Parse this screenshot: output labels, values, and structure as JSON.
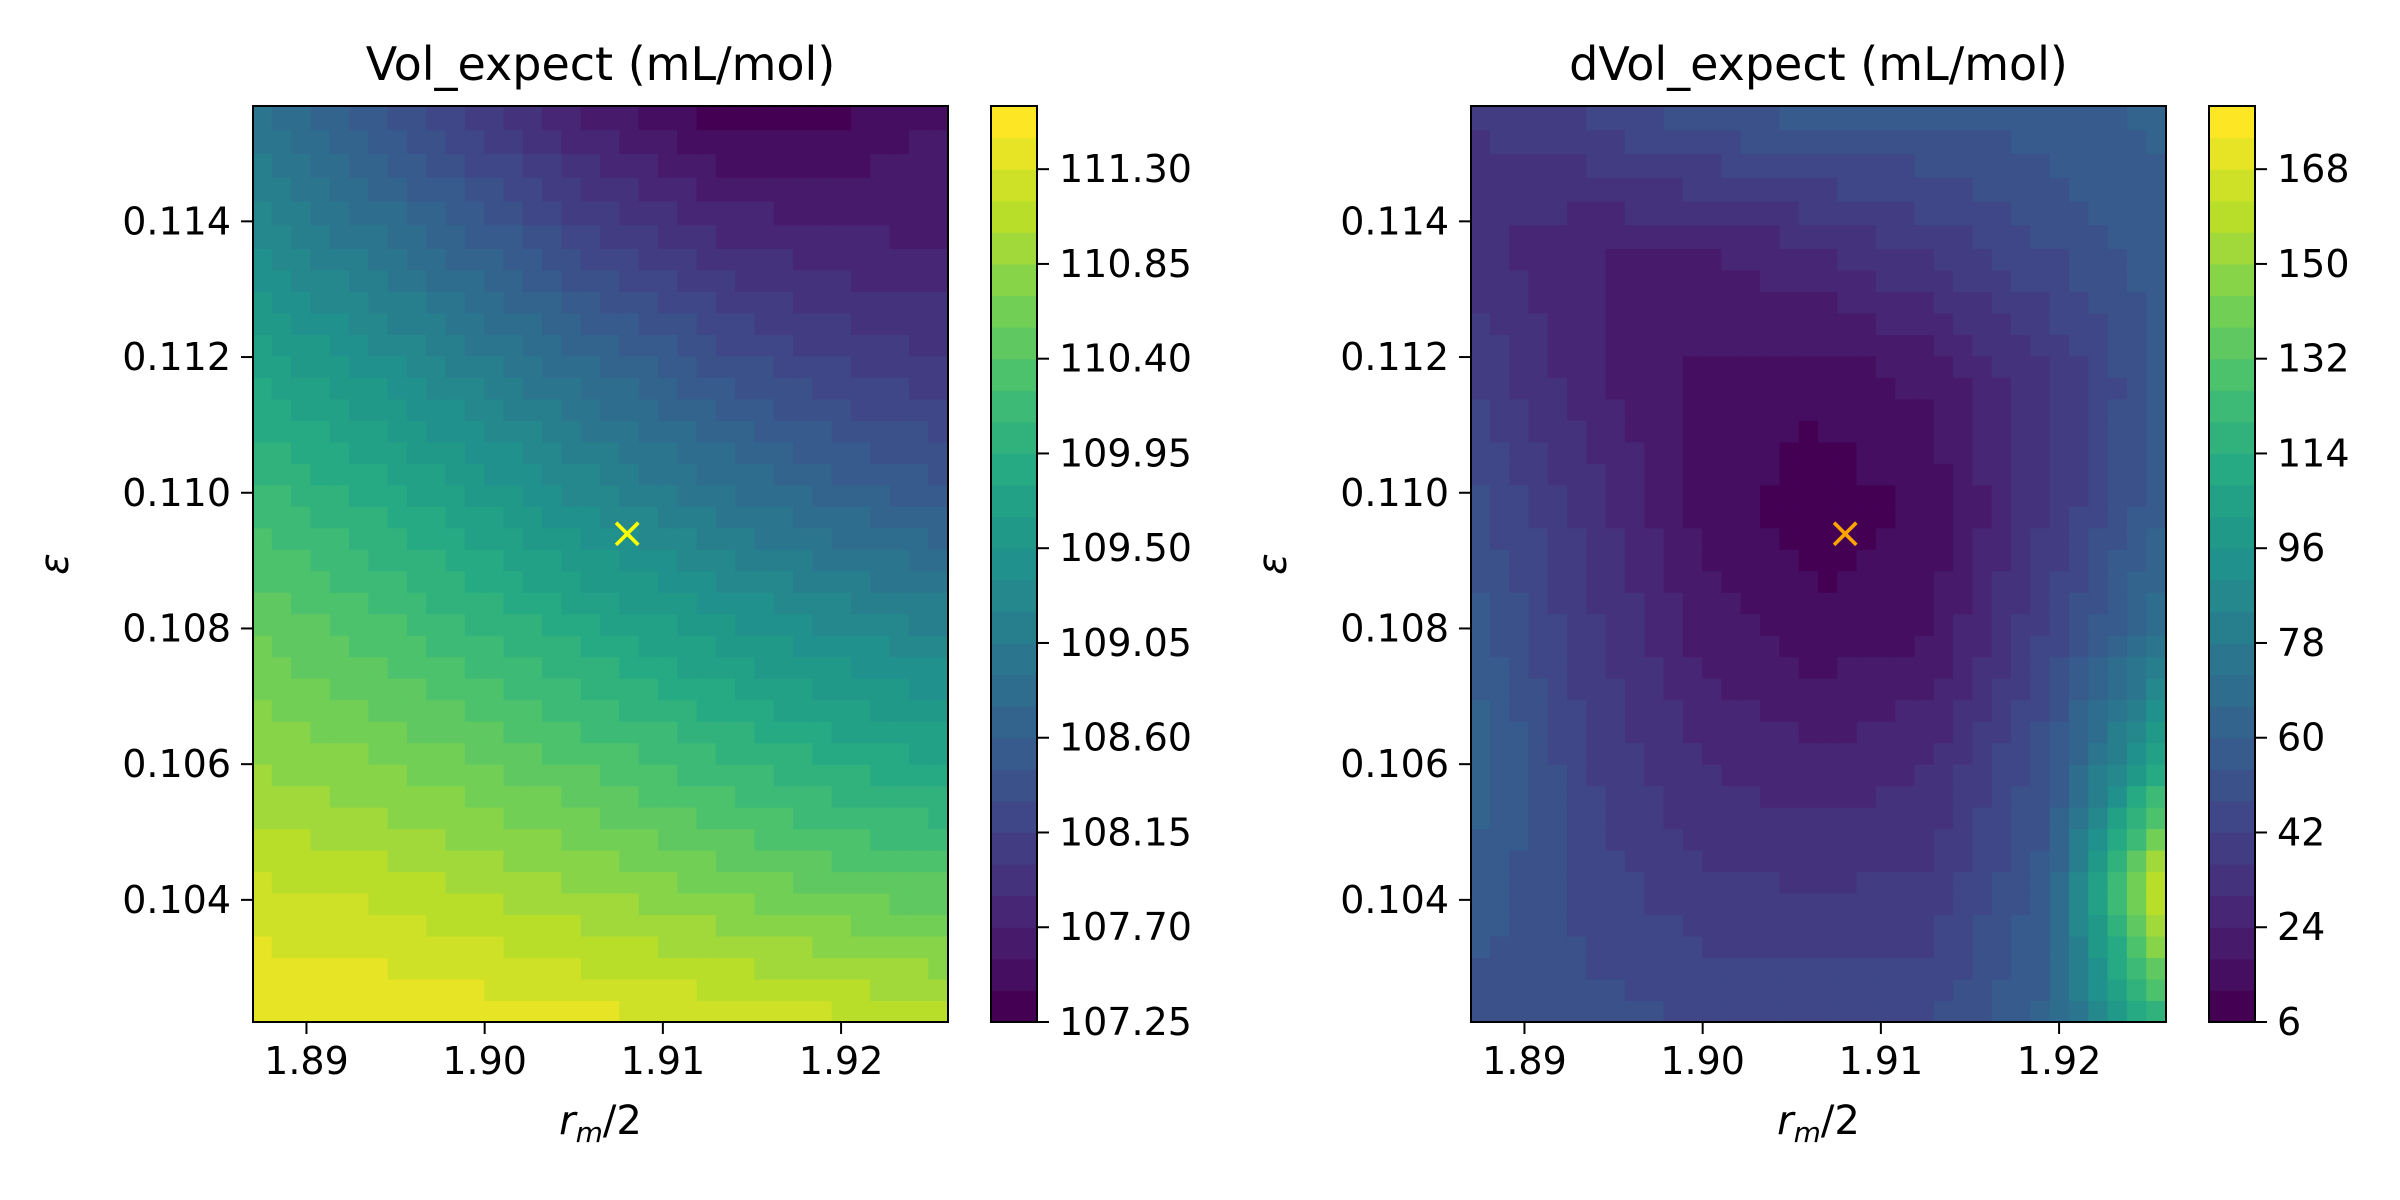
{
  "chart_data": [
    {
      "type": "contour",
      "title": "Vol_expect (mL/mol)",
      "xlabel": {
        "base": "r",
        "sub": "m",
        "rest": "/2"
      },
      "ylabel": "ε",
      "xlim": [
        1.887,
        1.926
      ],
      "ylim": [
        0.1022,
        0.1157
      ],
      "xticks": [
        1.89,
        1.9,
        1.91,
        1.92
      ],
      "xtick_labels": [
        "1.89",
        "1.90",
        "1.91",
        "1.92"
      ],
      "yticks": [
        0.104,
        0.106,
        0.108,
        0.11,
        0.112,
        0.114
      ],
      "ytick_labels": [
        "0.104",
        "0.106",
        "0.108",
        "0.110",
        "0.112",
        "0.114"
      ],
      "colormap": "viridis",
      "color_range": [
        107.25,
        111.6
      ],
      "levels": 29,
      "colorbar_ticks": [
        107.25,
        107.7,
        108.15,
        108.6,
        109.05,
        109.5,
        109.95,
        110.4,
        110.85,
        111.3
      ],
      "colorbar_labels": [
        "107.25",
        "107.70",
        "108.15",
        "108.60",
        "109.05",
        "109.50",
        "109.95",
        "110.40",
        "110.85",
        "111.30"
      ],
      "grid": {
        "x": [
          1.887,
          1.8935,
          1.9,
          1.9065,
          1.913,
          1.9195,
          1.926
        ],
        "y": [
          0.1022,
          0.1041,
          0.106,
          0.1079,
          0.1098,
          0.1117,
          0.1136,
          0.1157
        ],
        "z": [
          [
            111.45,
            111.45,
            111.4,
            111.35,
            111.28,
            111.2,
            111.1
          ],
          [
            111.2,
            111.12,
            111.0,
            110.85,
            110.7,
            110.55,
            110.45
          ],
          [
            110.85,
            110.72,
            110.55,
            110.35,
            110.15,
            109.95,
            109.8
          ],
          [
            110.55,
            110.35,
            110.1,
            109.85,
            109.6,
            109.38,
            109.2
          ],
          [
            110.2,
            109.95,
            109.65,
            109.3,
            109.0,
            108.75,
            108.55
          ],
          [
            109.8,
            109.5,
            109.15,
            108.8,
            108.45,
            108.2,
            108.05
          ],
          [
            109.35,
            109.0,
            108.6,
            108.2,
            107.9,
            107.75,
            107.7
          ],
          [
            108.9,
            108.45,
            108.0,
            107.6,
            107.3,
            107.35,
            107.55
          ]
        ]
      },
      "marker": {
        "x": 1.908,
        "y": 0.1094,
        "symbol": "×",
        "color": "#ffff00"
      }
    },
    {
      "type": "contour",
      "title": "dVol_expect (mL/mol)",
      "xlabel": {
        "base": "r",
        "sub": "m",
        "rest": "/2"
      },
      "ylabel": "ε",
      "xlim": [
        1.887,
        1.926
      ],
      "ylim": [
        0.1022,
        0.1157
      ],
      "xticks": [
        1.89,
        1.9,
        1.91,
        1.92
      ],
      "xtick_labels": [
        "1.89",
        "1.90",
        "1.91",
        "1.92"
      ],
      "yticks": [
        0.104,
        0.106,
        0.108,
        0.11,
        0.112,
        0.114
      ],
      "ytick_labels": [
        "0.104",
        "0.106",
        "0.108",
        "0.110",
        "0.112",
        "0.114"
      ],
      "colormap": "viridis",
      "color_range": [
        6,
        180
      ],
      "levels": 29,
      "colorbar_ticks": [
        6,
        24,
        42,
        60,
        78,
        96,
        114,
        132,
        150,
        168
      ],
      "colorbar_labels": [
        "6",
        "24",
        "42",
        "60",
        "78",
        "96",
        "114",
        "132",
        "150",
        "168"
      ],
      "grid": {
        "x": [
          1.887,
          1.8935,
          1.9,
          1.9065,
          1.913,
          1.9195,
          1.926
        ],
        "y": [
          0.1022,
          0.1041,
          0.106,
          0.1079,
          0.1098,
          0.1117,
          0.1136,
          0.1157
        ],
        "z": [
          [
            52,
            50,
            48,
            46,
            48,
            62,
            120
          ],
          [
            58,
            46,
            38,
            36,
            38,
            58,
            175
          ],
          [
            66,
            42,
            30,
            26,
            30,
            52,
            110
          ],
          [
            58,
            38,
            22,
            14,
            18,
            44,
            72
          ],
          [
            50,
            34,
            16,
            8,
            14,
            36,
            60
          ],
          [
            42,
            26,
            16,
            14,
            20,
            36,
            56
          ],
          [
            32,
            24,
            24,
            30,
            38,
            48,
            58
          ],
          [
            36,
            44,
            54,
            58,
            56,
            58,
            62
          ]
        ]
      },
      "marker": {
        "x": 1.908,
        "y": 0.1094,
        "symbol": "×",
        "color": "#ffa500"
      }
    }
  ]
}
